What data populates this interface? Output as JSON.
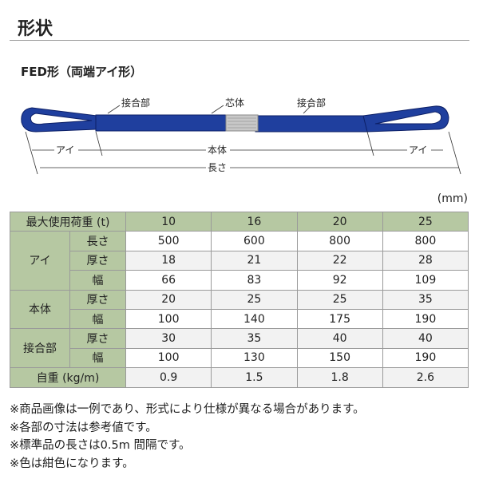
{
  "title": "形状",
  "subtitle": "FED形（両端アイ形）",
  "diagram": {
    "joint_left": "接合部",
    "core": "芯体",
    "joint_right": "接合部",
    "eye_left": "アイ",
    "body": "本体",
    "eye_right": "アイ",
    "length": "長さ",
    "sling_color": "#1f3f9e"
  },
  "unit": "(mm)",
  "table": {
    "header": {
      "label": "最大使用荷重 (t)",
      "values": [
        "10",
        "16",
        "20",
        "25"
      ]
    },
    "groups": [
      {
        "name": "アイ",
        "rows": [
          {
            "label": "長さ",
            "values": [
              "500",
              "600",
              "800",
              "800"
            ]
          },
          {
            "label": "厚さ",
            "values": [
              "18",
              "21",
              "22",
              "28"
            ]
          },
          {
            "label": "幅",
            "values": [
              "66",
              "83",
              "92",
              "109"
            ]
          }
        ]
      },
      {
        "name": "本体",
        "rows": [
          {
            "label": "厚さ",
            "values": [
              "20",
              "25",
              "25",
              "35"
            ]
          },
          {
            "label": "幅",
            "values": [
              "100",
              "140",
              "175",
              "190"
            ]
          }
        ]
      },
      {
        "name": "接合部",
        "rows": [
          {
            "label": "厚さ",
            "values": [
              "30",
              "35",
              "40",
              "40"
            ]
          },
          {
            "label": "幅",
            "values": [
              "100",
              "130",
              "150",
              "190"
            ]
          }
        ]
      }
    ],
    "weight": {
      "label": "自重 (kg/m)",
      "values": [
        "0.9",
        "1.5",
        "1.8",
        "2.6"
      ]
    }
  },
  "notes": [
    "※商品画像は一例であり、形式により仕様が異なる場合があります。",
    "※各部の寸法は参考値です。",
    "※標準品の長さは0.5m 間隔です。",
    "※色は紺色になります。"
  ]
}
